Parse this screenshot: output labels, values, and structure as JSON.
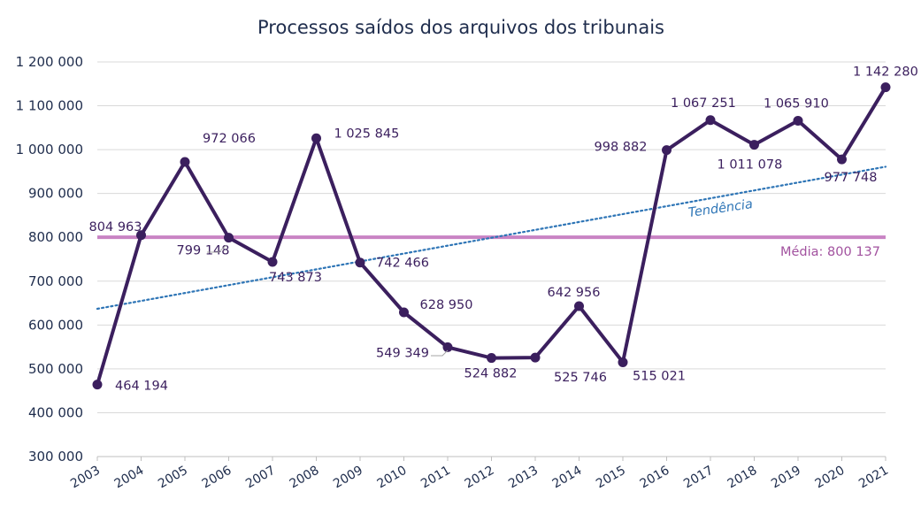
{
  "chart_data": {
    "type": "line",
    "title": "Processos saídos dos arquivos dos tribunais",
    "xlabel": "",
    "ylabel": "",
    "categories": [
      "2003",
      "2004",
      "2005",
      "2006",
      "2007",
      "2008",
      "2009",
      "2010",
      "2011",
      "2012",
      "2013",
      "2014",
      "2015",
      "2016",
      "2017",
      "2018",
      "2019",
      "2020",
      "2021"
    ],
    "series": [
      {
        "values": [
          464194,
          804963,
          972066,
          799148,
          743873,
          1025845,
          742466,
          628950,
          549349,
          524882,
          525746,
          642956,
          515021,
          998882,
          1067251,
          1011078,
          1065910,
          977748,
          1142280
        ],
        "labels": [
          "464 194",
          "804 963",
          "972 066",
          "799 148",
          "743 873",
          "1 025 845",
          "742 466",
          "628 950",
          "549 349",
          "524 882",
          "525 746",
          "642 956",
          "515 021",
          "998 882",
          "1 067 251",
          "1 011 078",
          "1 065 910",
          "977 748",
          "1 142 280"
        ]
      }
    ],
    "ylim": [
      300000,
      1200000
    ],
    "yticks": [
      300000,
      400000,
      500000,
      600000,
      700000,
      800000,
      900000,
      1000000,
      1100000,
      1200000
    ],
    "ytick_labels": [
      "300 000",
      "400 000",
      "500 000",
      "600 000",
      "700 000",
      "800 000",
      "900 000",
      "1 000 000",
      "1 100 000",
      "1 200 000"
    ],
    "grid": "horizontal",
    "mean": {
      "value": 800137,
      "label": "Média: 800 137"
    },
    "trend": {
      "label": "Tendência",
      "start": 637000,
      "end": 961000
    },
    "colors": {
      "line": "#3b1f5e",
      "mean": "#c983c4",
      "trend": "#2e75b6",
      "grid": "#d9d9d9",
      "text": "#1f2d4d"
    }
  }
}
